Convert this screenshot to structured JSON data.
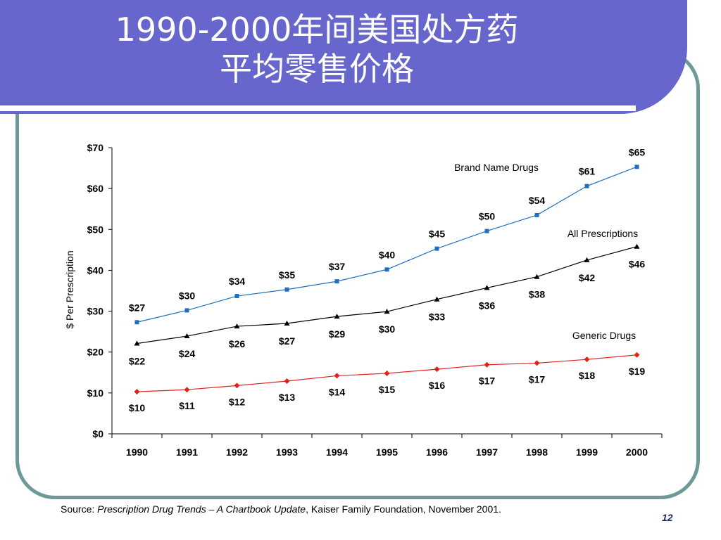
{
  "slide": {
    "title_line1": "1990-2000年间美国处方药",
    "title_line2": "平均零售价格",
    "source_prefix": "Source: ",
    "source_italic": "Prescription Drug Trends – A Chartbook Update",
    "source_suffix": ", Kaiser Family Foundation, November 2001.",
    "page_number": "12"
  },
  "colors": {
    "title_bar": "#6666cc",
    "frame": "#6c9a98",
    "page_number": "#1f2a66"
  },
  "chart_data": {
    "type": "line",
    "ylabel": "$ Per Prescription",
    "ylim": [
      0,
      70
    ],
    "y_ticks": [
      "$0",
      "$10",
      "$20",
      "$30",
      "$40",
      "$50",
      "$60",
      "$70"
    ],
    "categories": [
      "1990",
      "1991",
      "1992",
      "1993",
      "1994",
      "1995",
      "1996",
      "1997",
      "1998",
      "1999",
      "2000"
    ],
    "series": [
      {
        "name": "Brand Name Drugs",
        "color": "#1f6fbf",
        "marker": "square",
        "values": [
          27.3,
          30.2,
          33.7,
          35.3,
          37.3,
          40.2,
          45.3,
          49.6,
          53.5,
          60.6,
          65.3
        ],
        "labels": [
          "$27",
          "$30",
          "$34",
          "$35",
          "$37",
          "$40",
          "$45",
          "$50",
          "$54",
          "$61",
          "$65"
        ]
      },
      {
        "name": "All Prescriptions",
        "color": "#000000",
        "marker": "triangle",
        "values": [
          22.1,
          23.9,
          26.3,
          27.0,
          28.7,
          29.9,
          32.9,
          35.7,
          38.4,
          42.5,
          45.8
        ],
        "labels": [
          "$22",
          "$24",
          "$26",
          "$27",
          "$29",
          "$30",
          "$33",
          "$36",
          "$38",
          "$42",
          "$46"
        ]
      },
      {
        "name": "Generic Drugs",
        "color": "#e0221e",
        "marker": "diamond",
        "values": [
          10.3,
          10.8,
          11.8,
          12.9,
          14.2,
          14.8,
          15.8,
          16.9,
          17.3,
          18.2,
          19.3
        ],
        "labels": [
          "$10",
          "$11",
          "$12",
          "$13",
          "$14",
          "$15",
          "$16",
          "$17",
          "$17",
          "$18",
          "$19"
        ]
      }
    ]
  }
}
